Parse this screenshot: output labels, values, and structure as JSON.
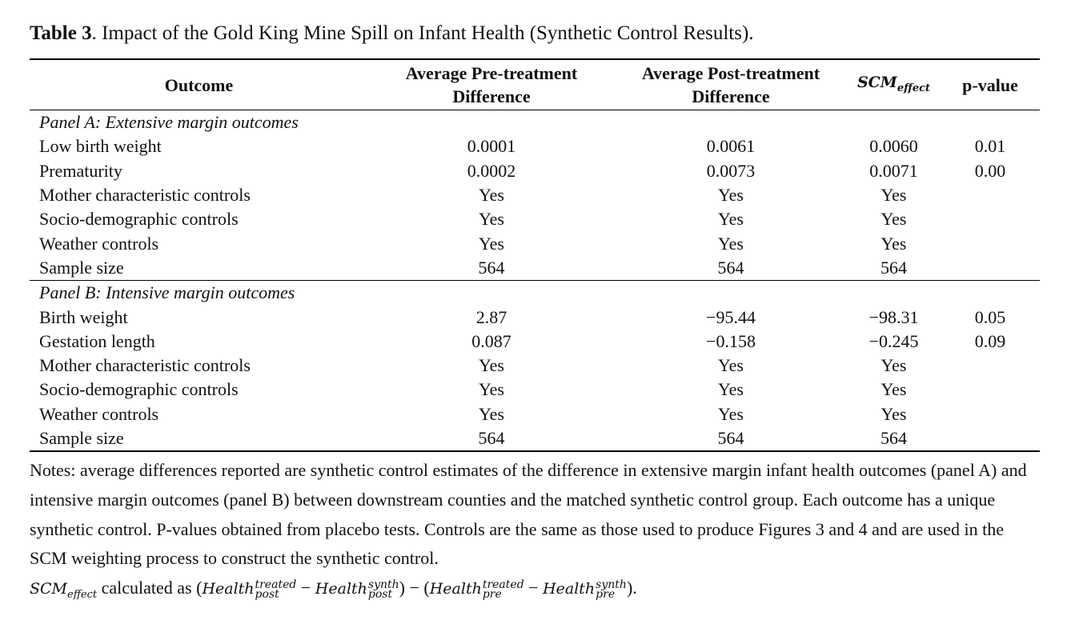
{
  "caption": {
    "label": "Table 3",
    "text": ". Impact of the Gold King Mine Spill on Infant Health (Synthetic Control Results)."
  },
  "table": {
    "headers": [
      "Outcome",
      "Average Pre-treatment Difference",
      "Average Post-treatment Difference",
      {
        "base": "SCM",
        "sub": "effect"
      },
      "p-value"
    ],
    "panels": [
      {
        "title": "Panel A: Extensive margin outcomes",
        "rows": [
          [
            "Low birth weight",
            "0.0001",
            "0.0061",
            "0.0060",
            "0.01"
          ],
          [
            "Prematurity",
            "0.0002",
            "0.0073",
            "0.0071",
            "0.00"
          ],
          [
            "Mother characteristic controls",
            "Yes",
            "Yes",
            "Yes",
            null
          ],
          [
            "Socio-demographic controls",
            "Yes",
            "Yes",
            "Yes",
            null
          ],
          [
            "Weather controls",
            "Yes",
            "Yes",
            "Yes",
            null
          ],
          [
            "Sample size",
            "564",
            "564",
            "564",
            null
          ]
        ]
      },
      {
        "title": "Panel B: Intensive margin outcomes",
        "rows": [
          [
            "Birth weight",
            "2.87",
            "−95.44",
            "−98.31",
            "0.05"
          ],
          [
            "Gestation length",
            "0.087",
            "−0.158",
            "−0.245",
            "0.09"
          ],
          [
            "Mother characteristic controls",
            "Yes",
            "Yes",
            "Yes",
            null
          ],
          [
            "Socio-demographic controls",
            "Yes",
            "Yes",
            "Yes",
            null
          ],
          [
            "Weather controls",
            "Yes",
            "Yes",
            "Yes",
            null
          ],
          [
            "Sample size",
            "564",
            "564",
            "564",
            null
          ]
        ]
      }
    ]
  },
  "notes": {
    "text": "Notes: average differences reported are synthetic control estimates of the difference in extensive margin infant health outcomes (panel A) and intensive margin outcomes (panel B) between downstream counties and the matched synthetic control group. Each outcome has a unique synthetic control. P-values obtained from placebo tests. Controls are the same as those used to produce Figures 3 and 4 and are used in the SCM weighting process to construct the synthetic control.",
    "formula": [
      {
        "base": "SCM",
        "sub": "effect"
      },
      " calculated as ",
      "(",
      {
        "base": "Health",
        "sup": "treated",
        "sub": "post"
      },
      " − ",
      {
        "base": "Health",
        "sup": "synth",
        "sub": "post"
      },
      ")",
      " − ",
      "(",
      {
        "base": "Health",
        "sup": "treated",
        "sub": "pre"
      },
      " − ",
      {
        "base": "Health",
        "sup": "synth",
        "sub": "pre"
      },
      ").",
      ""
    ]
  }
}
